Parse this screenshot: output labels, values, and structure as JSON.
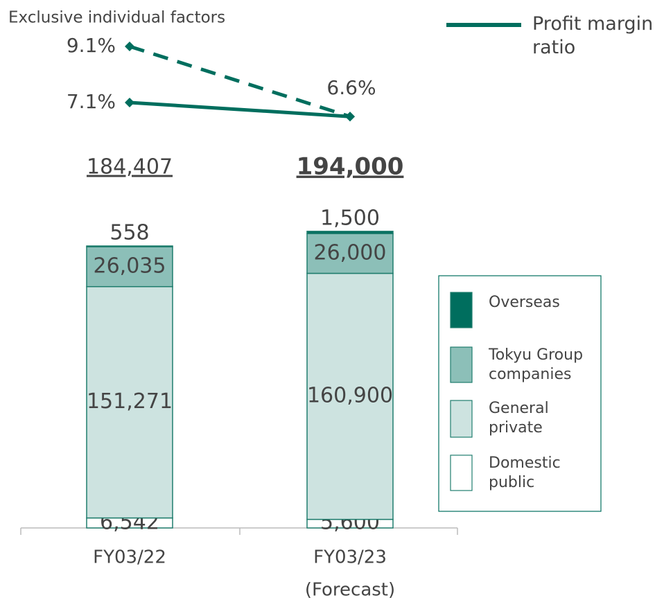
{
  "chart_data": {
    "type": "bar",
    "categories": [
      "FY03/22",
      "FY03/23"
    ],
    "category_notes": [
      null,
      "(Forecast)"
    ],
    "stacked": true,
    "series": [
      {
        "name": "Domestic public",
        "color": "#ffffff",
        "values": [
          6542,
          5600
        ],
        "value_labels": [
          "6,542",
          "5,600"
        ]
      },
      {
        "name": "General private",
        "color": "#cde3e0",
        "values": [
          151271,
          160900
        ],
        "value_labels": [
          "151,271",
          "160,900"
        ]
      },
      {
        "name": "Tokyu Group companies",
        "color": "#8cbfb8",
        "values": [
          26035,
          26000
        ],
        "value_labels": [
          "26,035",
          "26,000"
        ]
      },
      {
        "name": "Overseas",
        "color": "#006e5e",
        "values": [
          558,
          1500
        ],
        "value_labels": [
          "558",
          "1,500"
        ]
      }
    ],
    "totals": {
      "values": [
        184407,
        194000
      ],
      "value_labels": [
        "184,407",
        "194,000"
      ]
    },
    "lines": [
      {
        "name": "Profit margin ratio",
        "color": "#006e5e",
        "dash": false,
        "values": [
          7.1,
          6.6
        ],
        "value_labels": [
          "7.1%",
          "6.6%"
        ]
      },
      {
        "name": "Exclusive individual factors",
        "color": "#006e5e",
        "dash": true,
        "values": [
          9.1,
          6.6
        ],
        "value_labels": [
          "9.1%",
          null
        ]
      }
    ]
  }
}
